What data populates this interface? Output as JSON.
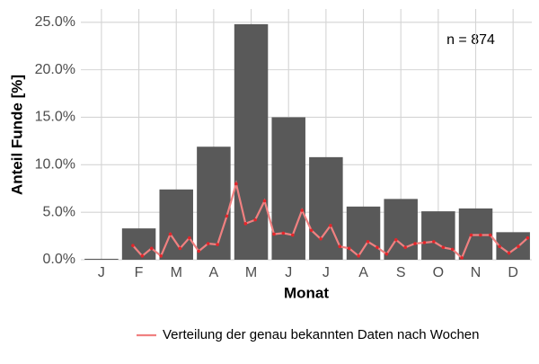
{
  "chart_data": {
    "type": "bar",
    "xlabel": "Monat",
    "ylabel": "Anteil Funde [%]",
    "annotation": "n = 874",
    "categories": [
      "J",
      "F",
      "M",
      "A",
      "M",
      "J",
      "J",
      "A",
      "S",
      "O",
      "N",
      "D"
    ],
    "values": [
      0.1,
      3.3,
      7.4,
      11.9,
      24.8,
      15.0,
      10.8,
      5.6,
      6.4,
      5.1,
      5.4,
      2.9
    ],
    "color": "#595959",
    "xlim": [
      0.45,
      12.5
    ],
    "ylim": [
      0,
      26.4
    ],
    "yticks": [
      {
        "value": 0,
        "label": "0.0%"
      },
      {
        "value": 5,
        "label": "5.0%"
      },
      {
        "value": 10,
        "label": "10.0%"
      },
      {
        "value": 15,
        "label": "15.0%"
      },
      {
        "value": 20,
        "label": "20.0%"
      },
      {
        "value": 25,
        "label": "25.0%"
      }
    ],
    "grid": true,
    "legend": "bottom",
    "line_series": [
      {
        "name": "Verteilung der genau bekannten Daten nach Wochen",
        "color": "#f08080",
        "marker_color": "#e3262b",
        "x": [
          1.84,
          2.09,
          2.34,
          2.59,
          2.84,
          3.1,
          3.35,
          3.6,
          3.85,
          4.1,
          4.35,
          4.6,
          4.85,
          5.11,
          5.36,
          5.61,
          5.86,
          6.11,
          6.36,
          6.61,
          6.86,
          7.12,
          7.37,
          7.62,
          7.87,
          8.12,
          8.37,
          8.62,
          8.87,
          9.12,
          9.38,
          9.63,
          9.88,
          10.13,
          10.38,
          10.63,
          10.88,
          11.13,
          11.39,
          11.64,
          11.89,
          12.14,
          12.39
        ],
        "values": [
          1.5,
          0.4,
          1.2,
          0.4,
          2.7,
          1.2,
          2.3,
          0.9,
          1.7,
          1.6,
          4.6,
          8.0,
          3.8,
          4.2,
          6.2,
          2.7,
          2.8,
          2.6,
          5.2,
          3.1,
          2.2,
          3.6,
          1.4,
          1.2,
          0.4,
          1.9,
          1.3,
          0.6,
          2.1,
          1.3,
          1.7,
          1.8,
          1.9,
          1.3,
          1.1,
          0.2,
          2.6,
          2.6,
          2.6,
          1.4,
          0.7,
          1.4,
          2.3
        ]
      }
    ]
  }
}
